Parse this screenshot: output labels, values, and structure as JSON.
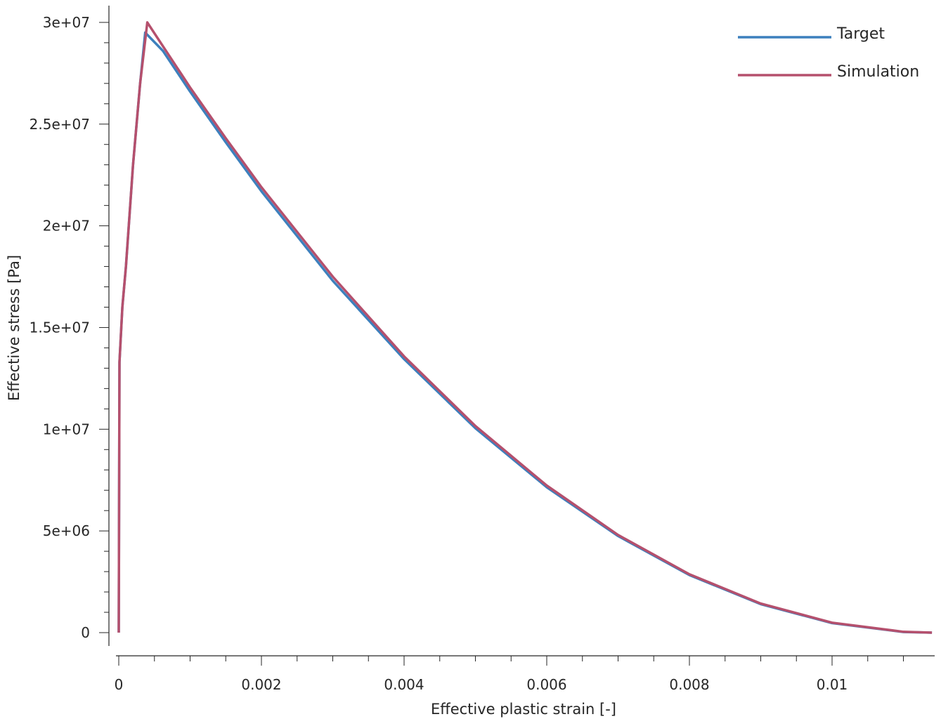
{
  "chart_data": {
    "type": "line",
    "title": "",
    "xlabel": "Effective plastic strain [-]",
    "ylabel": "Effective stress [Pa]",
    "xlim": [
      -3e-05,
      0.01144
    ],
    "ylim": [
      -900000,
      30800000
    ],
    "grid": false,
    "legend_placement": "top-right",
    "x_ticks": [
      {
        "value": 0,
        "label": "0"
      },
      {
        "value": 0.002,
        "label": "0.002"
      },
      {
        "value": 0.004,
        "label": "0.004"
      },
      {
        "value": 0.006,
        "label": "0.006"
      },
      {
        "value": 0.008,
        "label": "0.008"
      },
      {
        "value": 0.01,
        "label": "0.01"
      }
    ],
    "y_ticks": [
      {
        "value": 0,
        "label": "0"
      },
      {
        "value": 5000000,
        "label": "5e+06"
      },
      {
        "value": 10000000,
        "label": "1e+07"
      },
      {
        "value": 15000000,
        "label": "1.5e+07"
      },
      {
        "value": 20000000,
        "label": "2e+07"
      },
      {
        "value": 25000000,
        "label": "2.5e+07"
      },
      {
        "value": 30000000,
        "label": "3e+07"
      }
    ],
    "series": [
      {
        "name": "Target",
        "color": "#3d80bd",
        "x": [
          0,
          1e-05,
          5e-05,
          0.0001,
          0.0002,
          0.0003,
          0.00037,
          0.00062,
          0.001,
          0.0015,
          0.002,
          0.003,
          0.004,
          0.005,
          0.006,
          0.007,
          0.008,
          0.009,
          0.01,
          0.011,
          0.0114
        ],
        "y": [
          0,
          13300000,
          16000000,
          18000000,
          23000000,
          27000000,
          29500000,
          28600000,
          26600000,
          24100000,
          21700000,
          17300000,
          13450000,
          10050000,
          7150000,
          4750000,
          2830000,
          1400000,
          470000,
          30000,
          0
        ]
      },
      {
        "name": "Simulation",
        "color": "#b5506d",
        "x": [
          0,
          1e-05,
          5e-05,
          0.0001,
          0.0002,
          0.0003,
          0.0004,
          0.001,
          0.0015,
          0.002,
          0.003,
          0.004,
          0.005,
          0.006,
          0.007,
          0.008,
          0.009,
          0.01,
          0.011,
          0.0114
        ],
        "y": [
          0,
          13300000,
          16000000,
          18000000,
          23000000,
          27000000,
          30000000,
          26800000,
          24300000,
          21900000,
          17500000,
          13580000,
          10160000,
          7230000,
          4800000,
          2870000,
          1430000,
          490000,
          40000,
          0
        ]
      }
    ]
  }
}
